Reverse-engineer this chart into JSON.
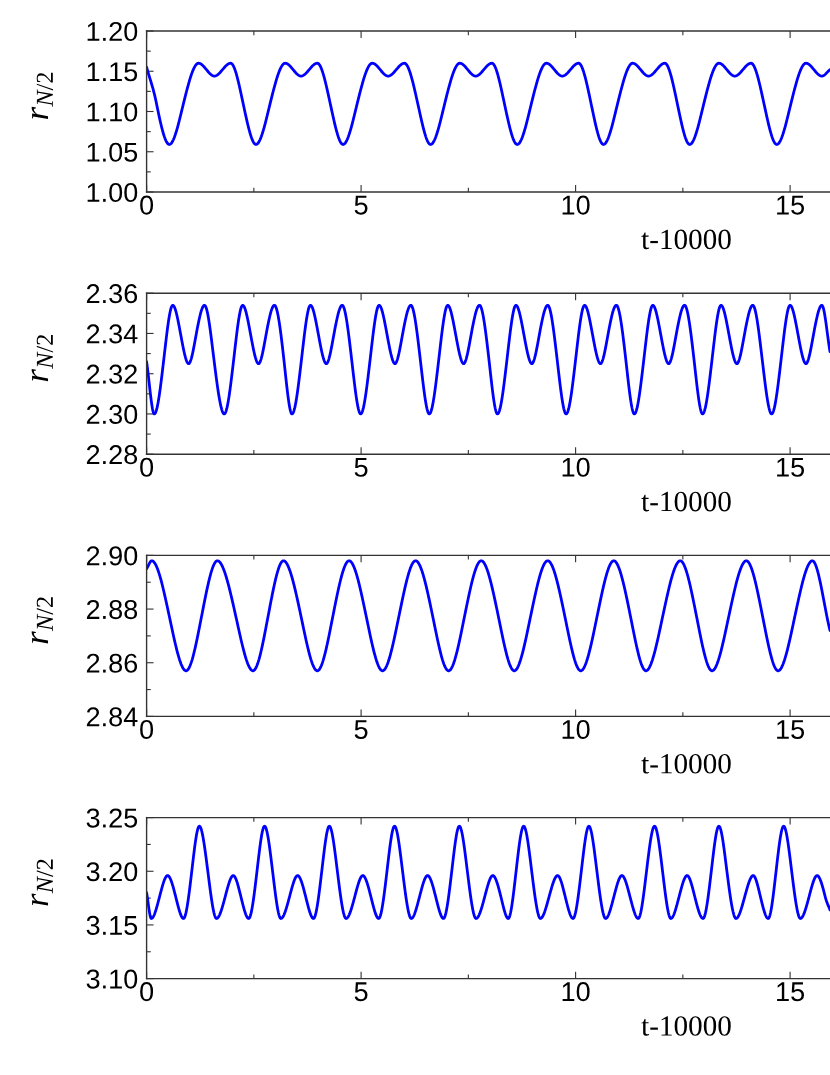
{
  "chart_data": [
    {
      "type": "line",
      "xlabel": "t-10000",
      "ylabel": "r$_{N/2}$",
      "xlim": [
        0,
        15.93
      ],
      "xticks": [
        0,
        5,
        10,
        15
      ],
      "ylim": [
        1.0,
        1.2
      ],
      "yticks": [
        {
          "value": 1.0,
          "label": "1.00"
        },
        {
          "value": 1.05,
          "label": "1.05"
        },
        {
          "value": 1.1,
          "label": "1.10"
        },
        {
          "value": 1.15,
          "label": "1.15"
        },
        {
          "value": 1.2,
          "label": "1.20"
        }
      ],
      "x": [
        0,
        0.23,
        0.53,
        0.86,
        1.21,
        1.58,
        1.96,
        2.25,
        2.55,
        2.88,
        3.23,
        3.6,
        3.98,
        4.28,
        4.58,
        4.91,
        5.26,
        5.63,
        6.01,
        6.32,
        6.62,
        6.95,
        7.3,
        7.67,
        8.05,
        8.34,
        8.64,
        8.97,
        9.32,
        9.69,
        10.07,
        10.36,
        10.65,
        10.98,
        11.33,
        11.7,
        12.08,
        12.37,
        12.66,
        12.99,
        13.34,
        13.71,
        14.09,
        14.39,
        14.69,
        15.02,
        15.37,
        15.74,
        15.93
      ],
      "series": [
        {
          "color": "#0000ff",
          "values": [
            1.155,
            1.11,
            1.059,
            1.11,
            1.16,
            1.144,
            1.16,
            1.11,
            1.059,
            1.11,
            1.16,
            1.144,
            1.16,
            1.11,
            1.059,
            1.11,
            1.16,
            1.144,
            1.16,
            1.11,
            1.059,
            1.11,
            1.16,
            1.144,
            1.16,
            1.11,
            1.059,
            1.11,
            1.16,
            1.144,
            1.16,
            1.11,
            1.059,
            1.11,
            1.16,
            1.144,
            1.16,
            1.11,
            1.059,
            1.11,
            1.16,
            1.144,
            1.16,
            1.11,
            1.059,
            1.11,
            1.16,
            1.144,
            1.152
          ]
        }
      ]
    },
    {
      "type": "line",
      "xlabel": "t-10000",
      "ylabel": "r$_{N/2}$",
      "xlim": [
        0,
        15.93
      ],
      "xticks": [
        0,
        5,
        10,
        15
      ],
      "ylim": [
        2.28,
        2.36
      ],
      "yticks": [
        {
          "value": 2.28,
          "label": "2.28"
        },
        {
          "value": 2.3,
          "label": "2.30"
        },
        {
          "value": 2.32,
          "label": "2.32"
        },
        {
          "value": 2.34,
          "label": "2.34"
        },
        {
          "value": 2.36,
          "label": "2.36"
        }
      ],
      "x": [
        0,
        0.18,
        0.4,
        0.61,
        0.79,
        0.98,
        1.16,
        1.35,
        1.57,
        1.81,
        2.03,
        2.24,
        2.42,
        2.61,
        2.79,
        2.98,
        3.2,
        3.39,
        3.61,
        3.82,
        4.0,
        4.19,
        4.37,
        4.56,
        4.78,
        4.99,
        5.21,
        5.42,
        5.6,
        5.79,
        5.97,
        6.16,
        6.38,
        6.59,
        6.81,
        7.02,
        7.2,
        7.39,
        7.57,
        7.76,
        7.98,
        8.18,
        8.4,
        8.61,
        8.79,
        8.98,
        9.16,
        9.35,
        9.57,
        9.78,
        10.0,
        10.21,
        10.39,
        10.58,
        10.76,
        10.95,
        11.17,
        11.37,
        11.59,
        11.8,
        11.98,
        12.17,
        12.35,
        12.54,
        12.76,
        12.96,
        13.18,
        13.39,
        13.57,
        13.76,
        13.94,
        14.13,
        14.35,
        14.57,
        14.79,
        15.0,
        15.18,
        15.37,
        15.55,
        15.74,
        15.93
      ],
      "series": [
        {
          "color": "#0000ff",
          "values": [
            2.326,
            2.3,
            2.327,
            2.354,
            2.34,
            2.325,
            2.34,
            2.354,
            2.327,
            2.3,
            2.327,
            2.354,
            2.34,
            2.325,
            2.34,
            2.354,
            2.327,
            2.3,
            2.327,
            2.354,
            2.34,
            2.325,
            2.34,
            2.354,
            2.327,
            2.3,
            2.327,
            2.354,
            2.34,
            2.325,
            2.34,
            2.354,
            2.327,
            2.3,
            2.327,
            2.354,
            2.34,
            2.325,
            2.34,
            2.354,
            2.327,
            2.3,
            2.327,
            2.354,
            2.34,
            2.325,
            2.34,
            2.354,
            2.327,
            2.3,
            2.327,
            2.354,
            2.34,
            2.325,
            2.34,
            2.354,
            2.327,
            2.3,
            2.327,
            2.354,
            2.34,
            2.325,
            2.34,
            2.354,
            2.327,
            2.3,
            2.327,
            2.354,
            2.34,
            2.325,
            2.34,
            2.354,
            2.327,
            2.3,
            2.327,
            2.354,
            2.34,
            2.325,
            2.34,
            2.354,
            2.331
          ]
        }
      ]
    },
    {
      "type": "line",
      "xlabel": "t-10000",
      "ylabel": "r$_{N/2}$",
      "xlim": [
        0,
        15.93
      ],
      "xticks": [
        0,
        5,
        10,
        15
      ],
      "ylim": [
        2.84,
        2.9
      ],
      "yticks": [
        {
          "value": 2.84,
          "label": "2.84"
        },
        {
          "value": 2.86,
          "label": "2.86"
        },
        {
          "value": 2.88,
          "label": "2.88"
        },
        {
          "value": 2.9,
          "label": "2.90"
        }
      ],
      "x": [
        0,
        0.12,
        0.52,
        0.92,
        1.29,
        1.65,
        2.07,
        2.48,
        2.84,
        3.19,
        3.59,
        3.98,
        4.35,
        4.72,
        5.11,
        5.5,
        5.89,
        6.27,
        6.66,
        7.04,
        7.42,
        7.8,
        8.19,
        8.57,
        8.96,
        9.35,
        9.74,
        10.12,
        10.51,
        10.89,
        11.27,
        11.64,
        12.04,
        12.44,
        12.81,
        13.18,
        13.58,
        13.98,
        14.35,
        14.72,
        15.12,
        15.52,
        15.93
      ],
      "series": [
        {
          "color": "#0000ff",
          "values": [
            2.895,
            2.898,
            2.878,
            2.857,
            2.878,
            2.898,
            2.878,
            2.857,
            2.878,
            2.898,
            2.878,
            2.857,
            2.878,
            2.898,
            2.878,
            2.857,
            2.878,
            2.898,
            2.878,
            2.857,
            2.878,
            2.898,
            2.878,
            2.857,
            2.878,
            2.898,
            2.878,
            2.857,
            2.878,
            2.898,
            2.878,
            2.857,
            2.878,
            2.898,
            2.878,
            2.857,
            2.878,
            2.898,
            2.878,
            2.857,
            2.878,
            2.898,
            2.872
          ]
        }
      ]
    },
    {
      "type": "line",
      "xlabel": "t-10000",
      "ylabel": "r$_{N/2}$",
      "xlim": [
        0,
        15.93
      ],
      "xticks": [
        0,
        5,
        10,
        15
      ],
      "ylim": [
        3.1,
        3.25
      ],
      "yticks": [
        {
          "value": 3.1,
          "label": "3.10"
        },
        {
          "value": 3.15,
          "label": "3.15"
        },
        {
          "value": 3.2,
          "label": "3.20"
        },
        {
          "value": 3.25,
          "label": "3.25"
        }
      ],
      "x": [
        0,
        0.11,
        0.3,
        0.49,
        0.68,
        0.86,
        1.05,
        1.23,
        1.43,
        1.63,
        1.83,
        2.02,
        2.2,
        2.38,
        2.57,
        2.75,
        2.94,
        3.13,
        3.33,
        3.52,
        3.71,
        3.89,
        4.08,
        4.26,
        4.45,
        4.65,
        4.85,
        5.04,
        5.23,
        5.41,
        5.6,
        5.78,
        5.97,
        6.17,
        6.36,
        6.55,
        6.74,
        6.92,
        7.11,
        7.29,
        7.48,
        7.68,
        7.88,
        8.07,
        8.26,
        8.43,
        8.61,
        8.79,
        8.98,
        9.18,
        9.38,
        9.58,
        9.76,
        9.94,
        10.13,
        10.31,
        10.5,
        10.7,
        10.89,
        11.08,
        11.27,
        11.46,
        11.65,
        11.84,
        12.03,
        12.22,
        12.41,
        12.6,
        12.78,
        12.97,
        13.16,
        13.34,
        13.53,
        13.74,
        13.94,
        14.14,
        14.31,
        14.49,
        14.67,
        14.85,
        15.04,
        15.24,
        15.44,
        15.63,
        15.82,
        15.93
      ],
      "series": [
        {
          "color": "#0000ff",
          "values": [
            3.18,
            3.156,
            3.176,
            3.196,
            3.176,
            3.156,
            3.199,
            3.242,
            3.199,
            3.156,
            3.176,
            3.196,
            3.176,
            3.156,
            3.199,
            3.242,
            3.199,
            3.156,
            3.176,
            3.196,
            3.176,
            3.156,
            3.199,
            3.242,
            3.199,
            3.156,
            3.176,
            3.196,
            3.176,
            3.156,
            3.199,
            3.242,
            3.199,
            3.156,
            3.176,
            3.196,
            3.176,
            3.156,
            3.199,
            3.242,
            3.199,
            3.156,
            3.176,
            3.196,
            3.176,
            3.156,
            3.199,
            3.242,
            3.199,
            3.156,
            3.176,
            3.196,
            3.176,
            3.156,
            3.199,
            3.242,
            3.199,
            3.156,
            3.176,
            3.196,
            3.176,
            3.156,
            3.199,
            3.242,
            3.199,
            3.156,
            3.176,
            3.196,
            3.176,
            3.156,
            3.199,
            3.242,
            3.199,
            3.156,
            3.176,
            3.196,
            3.176,
            3.156,
            3.199,
            3.242,
            3.199,
            3.156,
            3.176,
            3.196,
            3.176,
            3.164
          ]
        }
      ]
    }
  ]
}
